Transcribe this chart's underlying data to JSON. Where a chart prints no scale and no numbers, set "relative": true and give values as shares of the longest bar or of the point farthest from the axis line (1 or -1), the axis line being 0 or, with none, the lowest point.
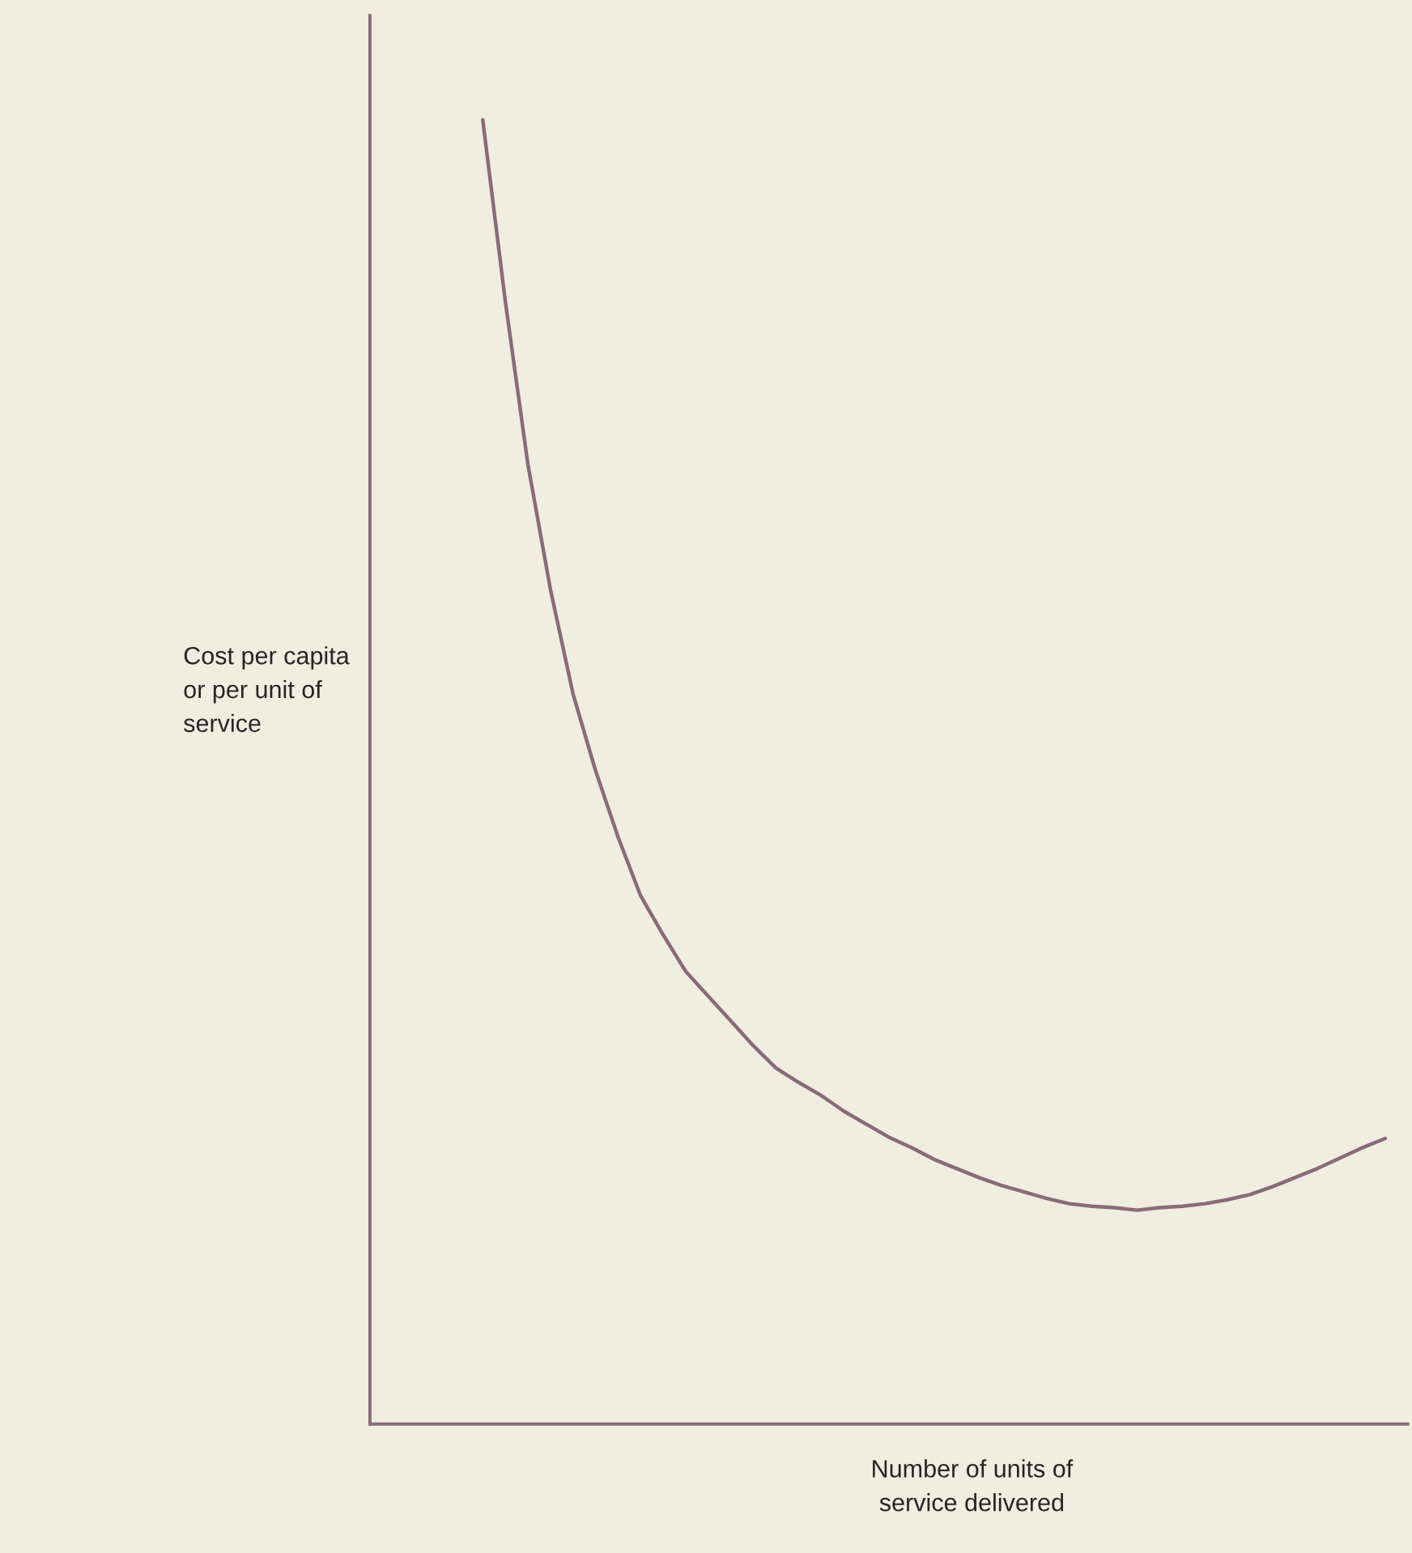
{
  "chart_data": {
    "type": "line",
    "relative": true,
    "ylabel": "Cost per capita\nor per unit of\nservice",
    "xlabel": "Number of units of\nservice delivered",
    "categories": [
      null,
      null,
      null,
      null,
      null,
      null,
      null,
      null,
      null,
      null,
      null,
      null,
      null,
      null,
      null,
      null,
      null,
      null,
      null,
      null,
      null,
      null,
      null,
      null,
      null,
      null,
      null,
      null,
      null,
      null,
      null,
      null,
      null,
      null,
      null,
      null,
      null,
      null,
      null,
      null,
      null,
      null,
      null,
      null,
      null,
      null,
      null
    ],
    "series": [
      {
        "color": "#8a6a78",
        "values": [
          null,
          null,
          null,
          null,
          null,
          1.0,
          0.861,
          0.736,
          0.64,
          0.56,
          0.501,
          0.45,
          0.405,
          0.375,
          0.347,
          0.328,
          0.309,
          0.29,
          0.273,
          0.262,
          0.252,
          0.24,
          0.23,
          0.22,
          0.212,
          0.203,
          0.196,
          0.189,
          0.183,
          0.178,
          0.173,
          0.169,
          0.167,
          0.166,
          0.164,
          0.166,
          0.167,
          0.169,
          0.172,
          0.176,
          0.182,
          0.189,
          0.196,
          0.204,
          0.212,
          0.219,
          null
        ]
      }
    ],
    "grid": false,
    "legend": false,
    "marker": "none",
    "line_style": "solid"
  }
}
